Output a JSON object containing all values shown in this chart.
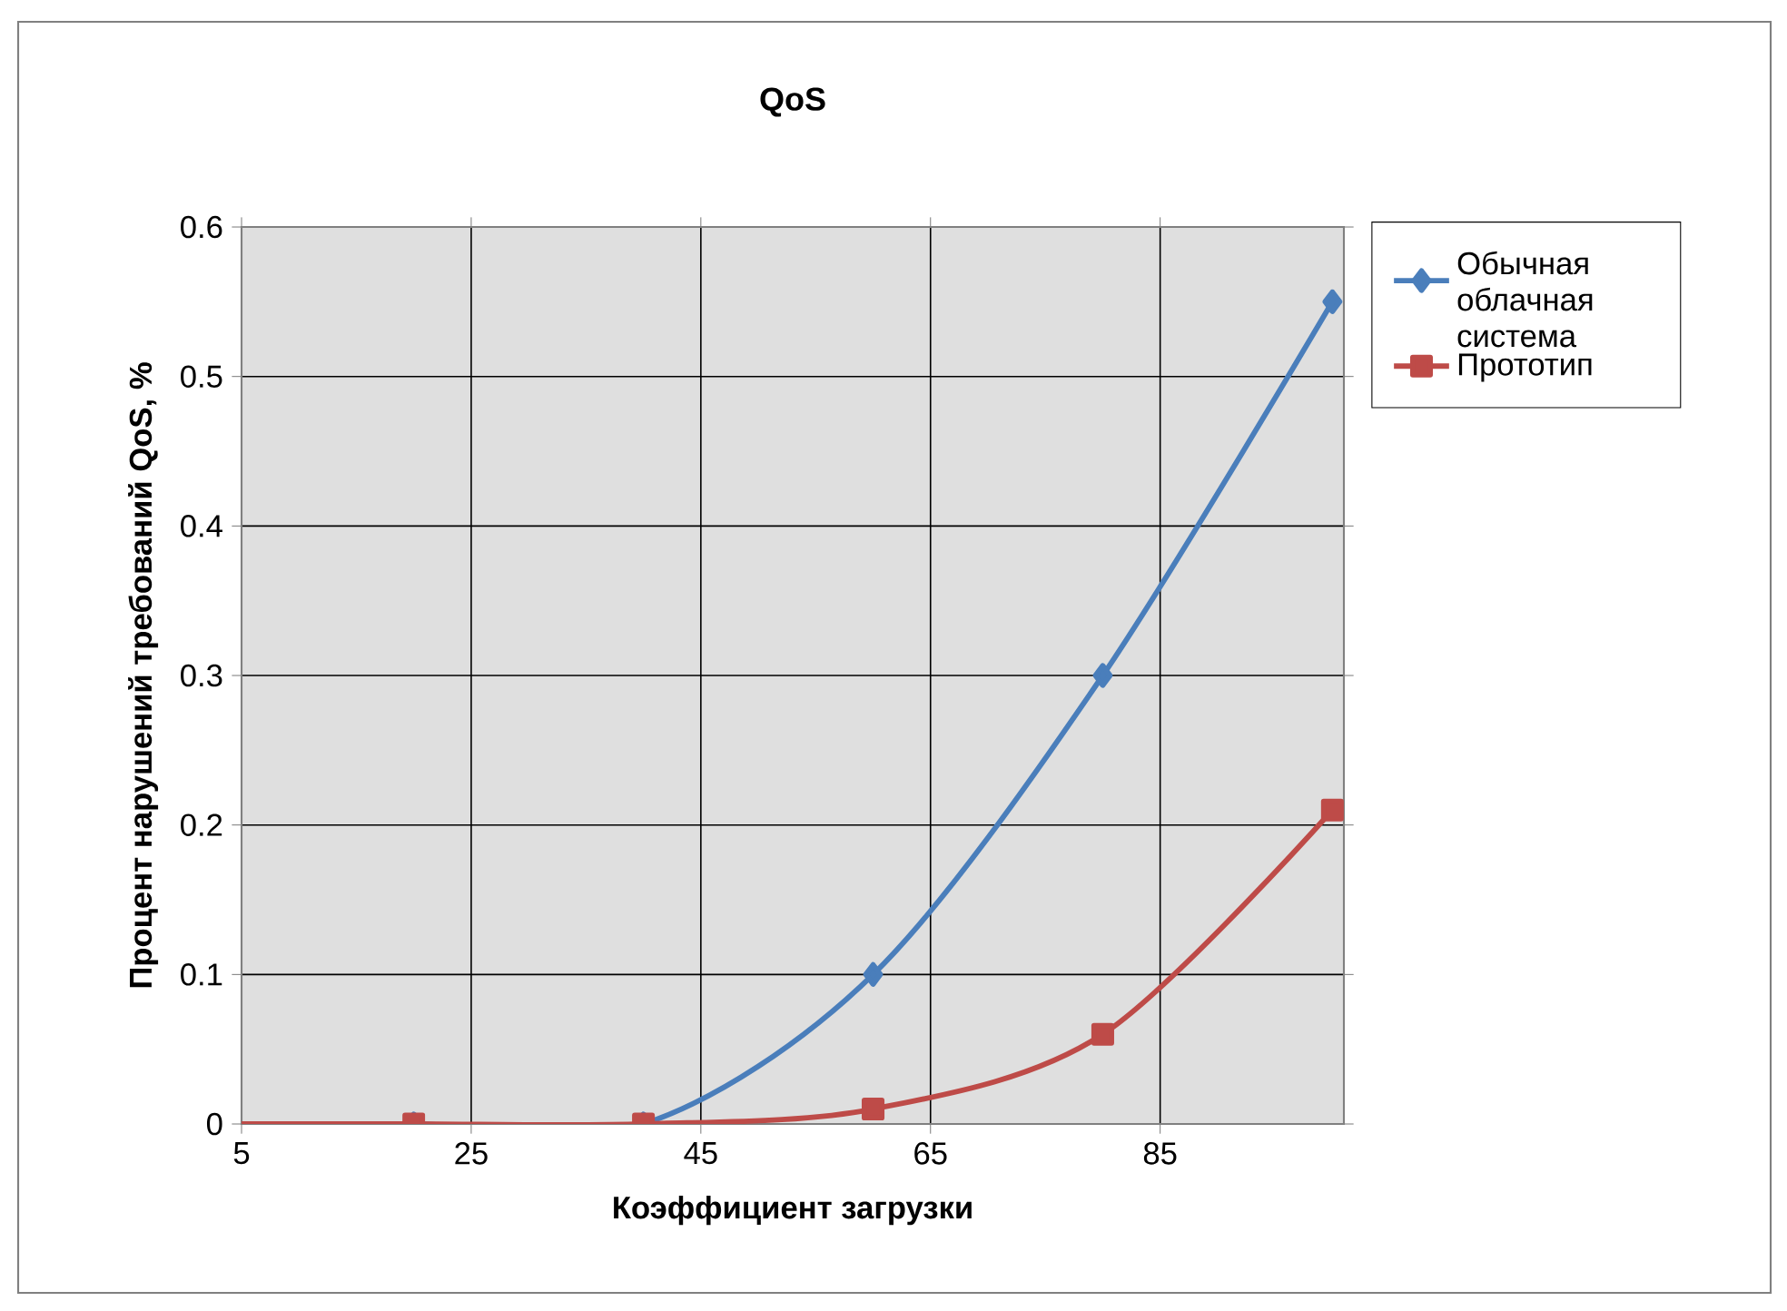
{
  "chart_data": {
    "type": "line",
    "title": "QoS",
    "xlabel": "Коэффициент загрузки",
    "ylabel": "Процент нарушений требований QoS, %",
    "x": [
      5,
      20,
      40,
      60,
      80,
      100
    ],
    "series": [
      {
        "name": "Обычная облачная система",
        "color": "#4a7ebb",
        "marker": "diamond",
        "values": [
          0,
          0,
          0,
          0.1,
          0.3,
          0.55
        ]
      },
      {
        "name": "Прототип",
        "color": "#be4b48",
        "marker": "square",
        "values": [
          0,
          0,
          0,
          0.01,
          0.06,
          0.21
        ]
      }
    ],
    "xlim": [
      5,
      101
    ],
    "ylim": [
      0,
      0.6
    ],
    "xticks": [
      5,
      25,
      45,
      65,
      85
    ],
    "yticks": [
      0,
      0.1,
      0.2,
      0.3,
      0.4,
      0.5,
      0.6
    ],
    "grid": true,
    "legend": "right"
  }
}
